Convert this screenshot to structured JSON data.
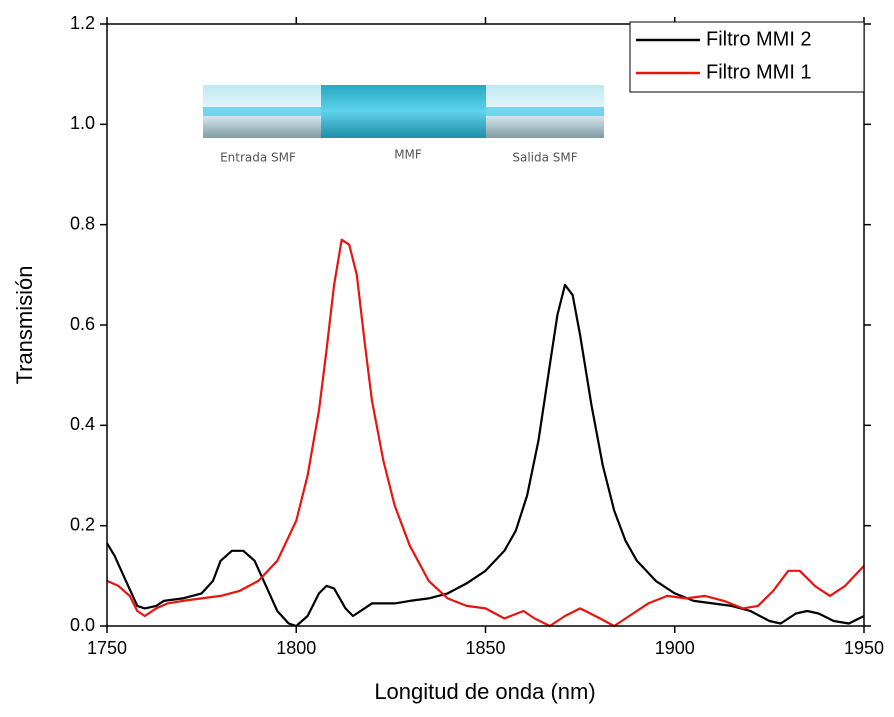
{
  "chart_data": {
    "type": "line",
    "xlabel": "Longitud de onda (nm)",
    "ylabel": "Transmisión",
    "xlim": [
      1750,
      1950
    ],
    "xticks": [
      1750,
      1800,
      1850,
      1900,
      1950
    ],
    "ylim": [
      0,
      1.2
    ],
    "yticks": [
      {
        "value": 0,
        "label": "0.0"
      },
      0.2,
      0.4,
      0.6,
      0.8,
      {
        "value": 1,
        "label": "1.0"
      },
      1.2
    ],
    "legend": "top-right",
    "inset_labels": [
      "Entrada SMF",
      "MMF",
      "Salida SMF"
    ],
    "series": [
      {
        "name": "Filtro MMI 2",
        "color": "#000000",
        "x": [
          1750,
          1752,
          1755,
          1758,
          1760,
          1763,
          1765,
          1770,
          1775,
          1778,
          1780,
          1783,
          1786,
          1789,
          1792,
          1795,
          1798,
          1800,
          1803,
          1806,
          1808,
          1810,
          1813,
          1815,
          1818,
          1820,
          1823,
          1826,
          1830,
          1835,
          1840,
          1845,
          1850,
          1855,
          1858,
          1861,
          1864,
          1867,
          1869,
          1871,
          1873,
          1875,
          1878,
          1881,
          1884,
          1887,
          1890,
          1895,
          1900,
          1905,
          1910,
          1915,
          1920,
          1925,
          1928,
          1932,
          1935,
          1938,
          1942,
          1946,
          1950
        ],
        "values": [
          0.165,
          0.14,
          0.09,
          0.04,
          0.035,
          0.04,
          0.05,
          0.055,
          0.065,
          0.09,
          0.13,
          0.15,
          0.15,
          0.13,
          0.08,
          0.03,
          0.005,
          0.0,
          0.02,
          0.065,
          0.08,
          0.075,
          0.035,
          0.02,
          0.035,
          0.045,
          0.045,
          0.045,
          0.05,
          0.055,
          0.065,
          0.085,
          0.11,
          0.15,
          0.19,
          0.26,
          0.37,
          0.52,
          0.62,
          0.68,
          0.66,
          0.58,
          0.44,
          0.32,
          0.23,
          0.17,
          0.13,
          0.09,
          0.065,
          0.05,
          0.045,
          0.04,
          0.03,
          0.01,
          0.005,
          0.025,
          0.03,
          0.025,
          0.01,
          0.005,
          0.02
        ]
      },
      {
        "name": "Filtro MMI 1",
        "color": "#e8140f",
        "x": [
          1750,
          1753,
          1756,
          1758,
          1760,
          1763,
          1766,
          1770,
          1775,
          1780,
          1785,
          1790,
          1795,
          1800,
          1803,
          1806,
          1808,
          1810,
          1812,
          1814,
          1816,
          1818,
          1820,
          1823,
          1826,
          1830,
          1835,
          1840,
          1845,
          1850,
          1855,
          1860,
          1863,
          1867,
          1871,
          1875,
          1879,
          1884,
          1888,
          1893,
          1898,
          1903,
          1908,
          1913,
          1918,
          1922,
          1926,
          1930,
          1933,
          1937,
          1941,
          1945,
          1950
        ],
        "values": [
          0.09,
          0.08,
          0.06,
          0.03,
          0.02,
          0.035,
          0.045,
          0.05,
          0.055,
          0.06,
          0.07,
          0.09,
          0.13,
          0.21,
          0.3,
          0.43,
          0.55,
          0.68,
          0.77,
          0.76,
          0.7,
          0.57,
          0.45,
          0.33,
          0.24,
          0.16,
          0.09,
          0.055,
          0.04,
          0.035,
          0.015,
          0.03,
          0.015,
          0.0,
          0.02,
          0.035,
          0.02,
          0.0,
          0.02,
          0.045,
          0.06,
          0.055,
          0.06,
          0.05,
          0.035,
          0.04,
          0.07,
          0.11,
          0.11,
          0.08,
          0.06,
          0.08,
          0.12
        ]
      }
    ]
  }
}
